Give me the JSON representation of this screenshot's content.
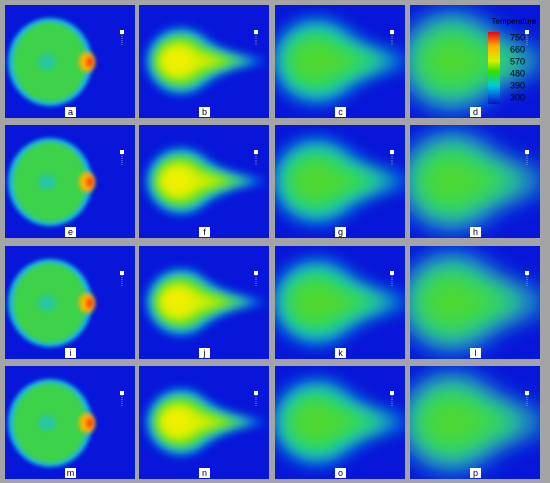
{
  "panels": [
    "a",
    "b",
    "c",
    "d",
    "e",
    "f",
    "g",
    "h",
    "i",
    "j",
    "k",
    "l",
    "m",
    "n",
    "o",
    "p"
  ],
  "legend": {
    "title": "Temperature",
    "ticks": [
      "750",
      "660",
      "570",
      "480",
      "390",
      "300"
    ]
  }
}
